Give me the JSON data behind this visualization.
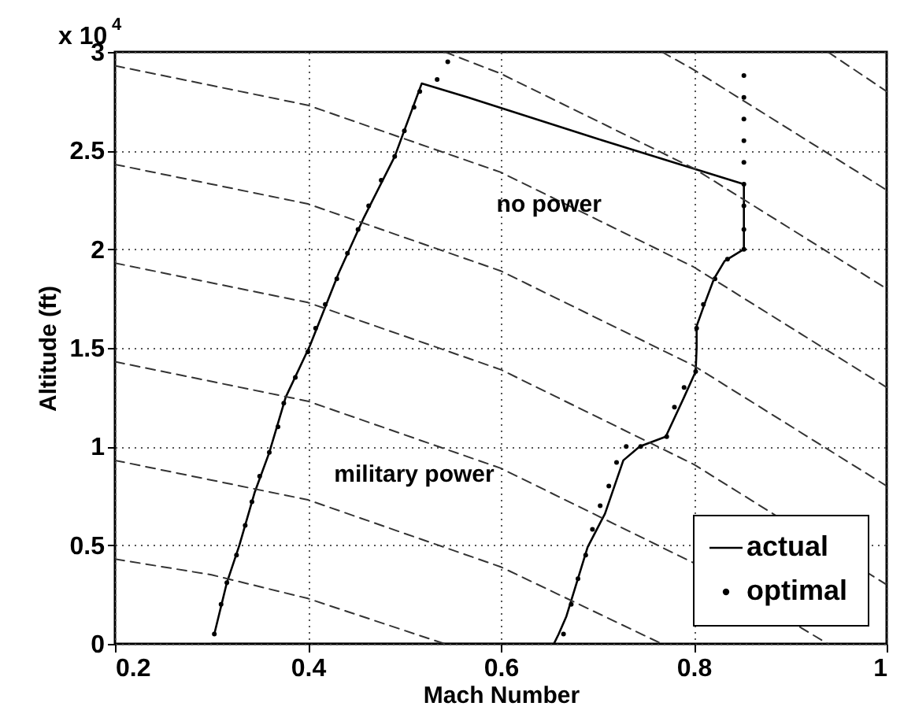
{
  "chart_data": {
    "type": "line",
    "xlabel": "Mach Number",
    "ylabel": "Altitude (ft)",
    "xlim": [
      0.2,
      1
    ],
    "ylim": [
      0,
      3
    ],
    "xticks": [
      0.2,
      0.4,
      0.6,
      0.8,
      1
    ],
    "yticks": [
      0,
      0.5,
      1,
      1.5,
      2,
      2.5,
      3
    ],
    "grid": true,
    "legend": "bottom right",
    "annotations": [
      "x 10$^{4}$",
      {
        "text": "no power",
        "x": 0.65,
        "y": 2.23
      },
      "military power"
    ],
    "series": [
      {
        "name": "actual",
        "color": "#000000",
        "line_style": "solid",
        "x": [
          0.3,
          0.4,
          0.5,
          0.6,
          0.655,
          0.66,
          0.668,
          0.69,
          0.708,
          0.727,
          0.744,
          0.771,
          0.79,
          0.802,
          0.803,
          0.803,
          0.811,
          0.821,
          0.832,
          0.852,
          0.852,
          0.7,
          0.566,
          0.518,
          0.49,
          0.458,
          0.432,
          0.402,
          0.377,
          0.36,
          0.345,
          0.329,
          0.316,
          0.303
        ],
        "values": [
          0,
          0,
          0,
          0,
          0,
          0.05,
          0.14,
          0.49,
          0.66,
          0.93,
          1.0,
          1.05,
          1.25,
          1.38,
          1.5,
          1.61,
          1.72,
          1.85,
          1.94,
          2.0,
          2.33,
          2.56,
          2.77,
          2.84,
          2.47,
          2.16,
          1.88,
          1.51,
          1.25,
          0.97,
          0.77,
          0.5,
          0.31,
          0.05
        ]
      },
      {
        "name": "optimal",
        "type": "scatter",
        "color": "#000000",
        "marker": "circle",
        "x": [
          0.303,
          0.31,
          0.316,
          0.326,
          0.335,
          0.342,
          0.35,
          0.36,
          0.369,
          0.375,
          0.387,
          0.4,
          0.408,
          0.418,
          0.43,
          0.441,
          0.452,
          0.463,
          0.476,
          0.49,
          0.5,
          0.51,
          0.516,
          0.534,
          0.545,
          0.665,
          0.673,
          0.68,
          0.688,
          0.695,
          0.703,
          0.712,
          0.72,
          0.73,
          0.745,
          0.772,
          0.78,
          0.79,
          0.802,
          0.803,
          0.81,
          0.822,
          0.835,
          0.852,
          0.852,
          0.852,
          0.852,
          0.852,
          0.852,
          0.852,
          0.852,
          0.852
        ],
        "values": [
          0.05,
          0.2,
          0.31,
          0.45,
          0.6,
          0.72,
          0.85,
          0.97,
          1.1,
          1.22,
          1.35,
          1.48,
          1.6,
          1.72,
          1.85,
          1.98,
          2.1,
          2.22,
          2.35,
          2.47,
          2.6,
          2.72,
          2.8,
          2.86,
          2.95,
          0.05,
          0.2,
          0.33,
          0.45,
          0.58,
          0.7,
          0.8,
          0.92,
          1.0,
          1.0,
          1.05,
          1.2,
          1.3,
          1.38,
          1.6,
          1.72,
          1.85,
          1.95,
          2.0,
          2.1,
          2.22,
          2.33,
          2.44,
          2.55,
          2.66,
          2.77,
          2.88
        ]
      },
      {
        "color": "#333333",
        "line_style": "dashed",
        "x": [
          0.2,
          0.3,
          0.4,
          0.542
        ],
        "values": [
          0.43,
          0.35,
          0.23,
          0
        ]
      },
      {
        "color": "#333333",
        "line_style": "dashed",
        "x": [
          0.2,
          0.4,
          0.6,
          0.767
        ],
        "values": [
          0.93,
          0.73,
          0.39,
          0
        ]
      },
      {
        "color": "#333333",
        "line_style": "dashed",
        "x": [
          0.2,
          0.4,
          0.6,
          0.8,
          0.939
        ],
        "values": [
          1.43,
          1.23,
          0.89,
          0.41,
          0
        ]
      },
      {
        "color": "#333333",
        "line_style": "dashed",
        "x": [
          0.2,
          0.4,
          0.6,
          0.8,
          1
        ],
        "values": [
          1.93,
          1.73,
          1.39,
          0.91,
          0.3
        ]
      },
      {
        "color": "#333333",
        "line_style": "dashed",
        "x": [
          0.2,
          0.4,
          0.6,
          0.8,
          1
        ],
        "values": [
          2.43,
          2.23,
          1.89,
          1.41,
          0.8
        ]
      },
      {
        "color": "#333333",
        "line_style": "dashed",
        "x": [
          0.2,
          0.4,
          0.6,
          0.8,
          1
        ],
        "values": [
          2.93,
          2.73,
          2.39,
          1.91,
          1.3
        ]
      },
      {
        "color": "#333333",
        "line_style": "dashed",
        "x": [
          0.542,
          0.6,
          0.8,
          1
        ],
        "values": [
          3,
          2.89,
          2.41,
          1.8
        ]
      },
      {
        "color": "#333333",
        "line_style": "dashed",
        "x": [
          0.767,
          0.8,
          1
        ],
        "values": [
          3,
          2.91,
          2.3
        ]
      },
      {
        "color": "#333333",
        "line_style": "dashed",
        "x": [
          0.939,
          1
        ],
        "values": [
          3,
          2.8
        ]
      }
    ]
  }
}
